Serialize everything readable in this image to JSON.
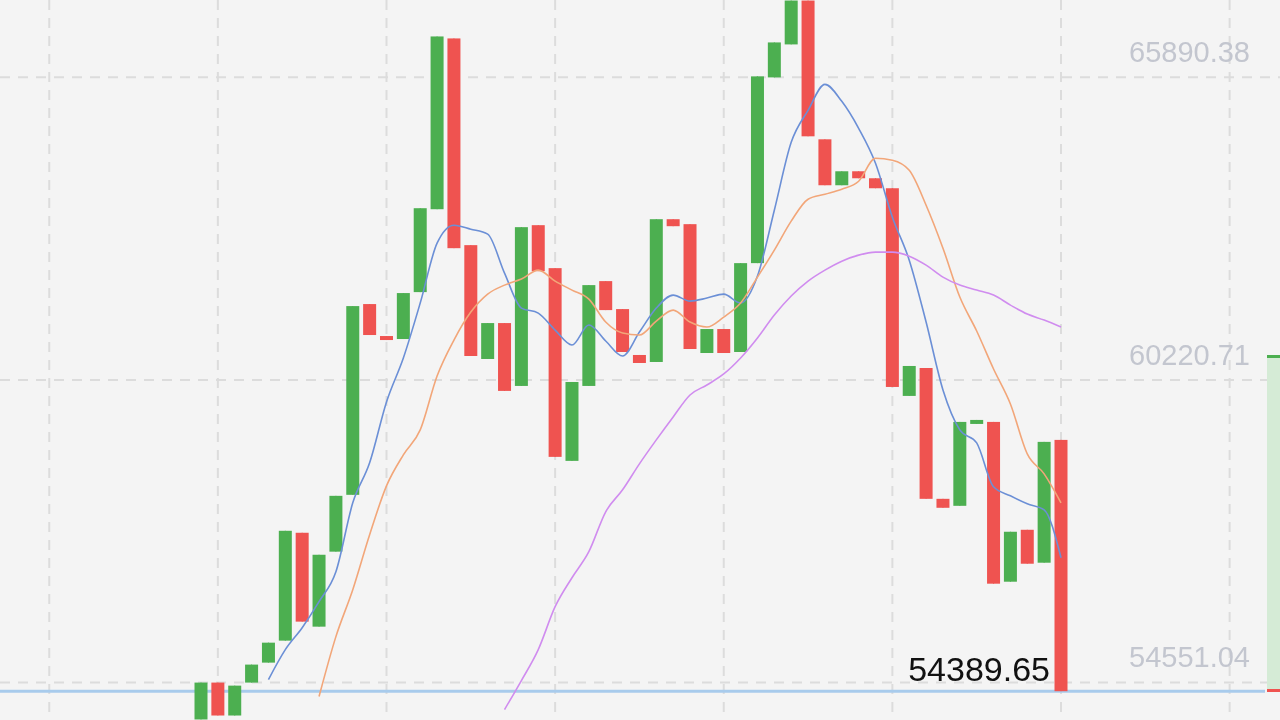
{
  "chart_data": {
    "type": "candlestick",
    "categories": [
      null,
      null,
      null,
      null,
      null,
      null,
      null,
      null,
      null,
      null,
      null,
      null,
      null,
      null,
      null,
      null,
      null,
      null,
      null,
      null,
      null,
      null,
      null,
      null,
      null,
      null,
      null,
      null,
      null,
      null,
      null,
      null,
      null,
      null,
      null,
      null,
      null,
      null,
      null,
      null,
      null,
      null,
      null,
      null,
      null,
      null,
      null,
      null,
      null,
      null,
      null,
      null
    ],
    "ohlc": [
      [
        53860,
        54551,
        53860,
        54551
      ],
      [
        54551,
        54551,
        53934,
        53934
      ],
      [
        53934,
        54494,
        53934,
        54494
      ],
      [
        54551,
        54888,
        54551,
        54888
      ],
      [
        54925,
        55299,
        54925,
        55299
      ],
      [
        55337,
        57395,
        55337,
        57395
      ],
      [
        57358,
        57358,
        55693,
        55693
      ],
      [
        55599,
        56946,
        55599,
        56946
      ],
      [
        57004,
        58050,
        57004,
        58050
      ],
      [
        58069,
        61605,
        58069,
        61605
      ],
      [
        61643,
        61643,
        61063,
        61063
      ],
      [
        61044,
        61044,
        60969,
        60969
      ],
      [
        60988,
        61849,
        60988,
        61849
      ],
      [
        61867,
        63439,
        61867,
        63439
      ],
      [
        63420,
        66657,
        63420,
        66657
      ],
      [
        66620,
        66620,
        62690,
        62690
      ],
      [
        62747,
        62747,
        60670,
        60670
      ],
      [
        60614,
        61287,
        60614,
        61287
      ],
      [
        61287,
        61287,
        60016,
        60016
      ],
      [
        60109,
        63084,
        60109,
        63084
      ],
      [
        63121,
        63121,
        62260,
        62260
      ],
      [
        62316,
        62316,
        58780,
        58780
      ],
      [
        58705,
        60183,
        58705,
        60183
      ],
      [
        60109,
        61998,
        60109,
        61998
      ],
      [
        62073,
        62073,
        61530,
        61530
      ],
      [
        61549,
        61549,
        60745,
        60745
      ],
      [
        60689,
        60689,
        60539,
        60539
      ],
      [
        60558,
        63233,
        60558,
        63233
      ],
      [
        63233,
        63233,
        63102,
        63102
      ],
      [
        63140,
        63140,
        60801,
        60801
      ],
      [
        60726,
        61175,
        60726,
        61175
      ],
      [
        61175,
        61175,
        60726,
        60726
      ],
      [
        60745,
        62410,
        60745,
        62410
      ],
      [
        62410,
        65909,
        62410,
        65909
      ],
      [
        65890,
        66545,
        65890,
        66545
      ],
      [
        66508,
        67330,
        66508,
        67330
      ],
      [
        67330,
        67330,
        64786,
        64786
      ],
      [
        64730,
        64730,
        63869,
        63869
      ],
      [
        63869,
        64131,
        63869,
        64131
      ],
      [
        64131,
        64131,
        64000,
        64000
      ],
      [
        64000,
        64000,
        63813,
        63813
      ],
      [
        63813,
        63813,
        60090,
        60090
      ],
      [
        59922,
        60483,
        59922,
        60483
      ],
      [
        60445,
        60445,
        57994,
        57994
      ],
      [
        57994,
        57994,
        57826,
        57826
      ],
      [
        57863,
        59435,
        57863,
        59435
      ],
      [
        59397,
        59472,
        59397,
        59472
      ],
      [
        59435,
        59435,
        56404,
        56404
      ],
      [
        56441,
        57377,
        56441,
        57377
      ],
      [
        57414,
        57414,
        56778,
        56778
      ],
      [
        56797,
        59061,
        56797,
        59061
      ],
      [
        59098,
        59098,
        54389.65,
        54389.65
      ]
    ],
    "colors": [
      "#4caf50",
      "#ef5350",
      "#4caf50",
      "#4caf50",
      "#4caf50",
      "#4caf50",
      "#ef5350",
      "#4caf50",
      "#4caf50",
      "#4caf50",
      "#ef5350",
      "#ef5350",
      "#4caf50",
      "#4caf50",
      "#4caf50",
      "#ef5350",
      "#ef5350",
      "#4caf50",
      "#ef5350",
      "#4caf50",
      "#ef5350",
      "#ef5350",
      "#4caf50",
      "#4caf50",
      "#ef5350",
      "#ef5350",
      "#ef5350",
      "#4caf50",
      "#ef5350",
      "#ef5350",
      "#4caf50",
      "#ef5350",
      "#4caf50",
      "#4caf50",
      "#4caf50",
      "#4caf50",
      "#ef5350",
      "#ef5350",
      "#4caf50",
      "#ef5350",
      "#ef5350",
      "#ef5350",
      "#4caf50",
      "#ef5350",
      "#ef5350",
      "#4caf50",
      "#4caf50",
      "#ef5350",
      "#4caf50",
      "#ef5350",
      "#4caf50",
      "#ef5350"
    ],
    "series": [
      {
        "type": "line",
        "color": "#6b8fd6",
        "values": [
          null,
          null,
          null,
          null,
          54608,
          55169,
          55580,
          56067,
          56628,
          57919,
          58668,
          59809,
          60632,
          61662,
          62784,
          63121,
          63046,
          62953,
          62223,
          61568,
          61474,
          61156,
          60876,
          61250,
          60951,
          60670,
          61119,
          61568,
          61811,
          61699,
          61755,
          61830,
          61662,
          62167,
          63402,
          64674,
          65273,
          65759,
          65441,
          64936,
          64281,
          63271,
          62466,
          61306,
          60034,
          59285,
          59042,
          58219,
          58050,
          57901,
          57788,
          56890
        ]
      },
      {
        "type": "line",
        "color": "#f2a679",
        "values": [
          null,
          null,
          null,
          null,
          null,
          null,
          null,
          54289,
          55412,
          56291,
          57321,
          58237,
          58817,
          59285,
          60296,
          60969,
          61493,
          61830,
          61998,
          62111,
          62279,
          62073,
          61905,
          61736,
          61306,
          61100,
          61063,
          61325,
          61530,
          61306,
          61213,
          61400,
          61662,
          62148,
          62653,
          63196,
          63608,
          63701,
          63795,
          63944,
          64375,
          64337,
          64150,
          63495,
          62690,
          61774,
          61138,
          60427,
          59772,
          58836,
          58462,
          57919
        ]
      },
      {
        "type": "line",
        "color": "#d08cef",
        "values": [
          null,
          null,
          null,
          null,
          null,
          null,
          null,
          null,
          null,
          null,
          null,
          null,
          null,
          null,
          null,
          null,
          null,
          null,
          54046,
          54589,
          55169,
          55973,
          56516,
          57004,
          57751,
          58163,
          58649,
          59098,
          59528,
          59940,
          60127,
          60333,
          60632,
          61007,
          61437,
          61793,
          62073,
          62279,
          62447,
          62560,
          62616,
          62616,
          62541,
          62373,
          62148,
          61998,
          61905,
          61811,
          61624,
          61456,
          61343,
          61212
        ]
      }
    ],
    "ylim": [
      53850,
      67340
    ],
    "yticks": [
      54551.04,
      60220.71,
      65890.38
    ],
    "grid": true,
    "tick_labels": "y",
    "ref_lines": [
      {
        "axis": "y",
        "value": 54389.65,
        "label": "54389.65",
        "color": "#a8cbec"
      }
    ]
  }
}
